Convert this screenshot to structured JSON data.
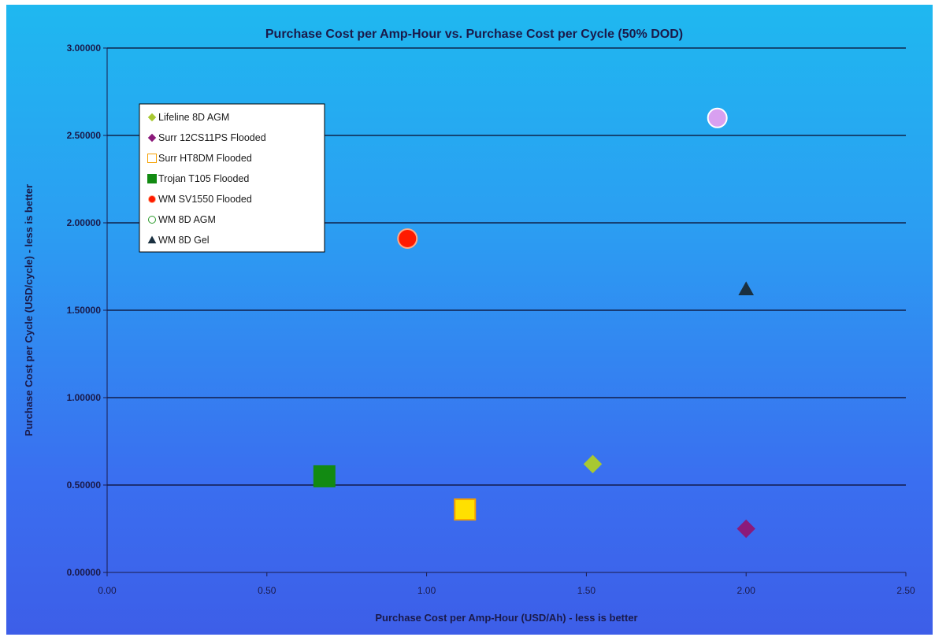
{
  "chart_data": {
    "type": "scatter",
    "title": "Purchase Cost per Amp-Hour vs. Purchase Cost per Cycle (50% DOD)",
    "xlabel": "Purchase Cost per Amp-Hour (USD/Ah) - less is better",
    "ylabel": "Purchase Cost per Cycle (USD/cycle) - less is better",
    "xlim": [
      0,
      2.5
    ],
    "ylim": [
      0,
      3.0
    ],
    "x_ticks": [
      "0.00",
      "0.50",
      "1.00",
      "1.50",
      "2.00",
      "2.50"
    ],
    "y_ticks": [
      "0.00000",
      "0.50000",
      "1.00000",
      "1.50000",
      "2.00000",
      "2.50000",
      "3.00000"
    ],
    "grid": "horizontal",
    "legend_position": "top-left",
    "series": [
      {
        "name": "Lifeline 8D AGM",
        "marker": "diamond",
        "color": "#a8c832",
        "points": [
          {
            "x": 1.52,
            "y": 0.62
          }
        ]
      },
      {
        "name": "Surr 12CS11PS Flooded",
        "marker": "diamond",
        "color": "#8b1a7a",
        "points": [
          {
            "x": 2.0,
            "y": 0.25
          }
        ]
      },
      {
        "name": "Surr HT8DM Flooded",
        "marker": "square",
        "color": "#ffe000",
        "stroke": "#f5a000",
        "points": [
          {
            "x": 1.12,
            "y": 0.36
          }
        ]
      },
      {
        "name": "Trojan T105 Flooded",
        "marker": "square",
        "color": "#128a12",
        "points": [
          {
            "x": 0.68,
            "y": 0.55
          }
        ]
      },
      {
        "name": "WM SV1550 Flooded",
        "marker": "circle",
        "color": "#ff1a00",
        "stroke": "#ffaa88",
        "points": [
          {
            "x": 0.94,
            "y": 1.91
          }
        ]
      },
      {
        "name": "WM 8D AGM",
        "marker": "circle",
        "color": "#d8a0f0",
        "stroke": "#ffffff",
        "points": [
          {
            "x": 1.91,
            "y": 2.6
          }
        ]
      },
      {
        "name": "WM 8D Gel",
        "marker": "triangle",
        "color": "#1a3040",
        "points": [
          {
            "x": 2.0,
            "y": 1.62
          }
        ]
      }
    ]
  }
}
